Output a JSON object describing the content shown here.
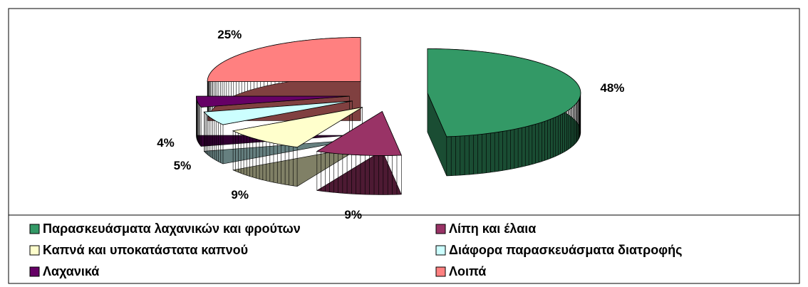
{
  "chart_data": {
    "type": "pie",
    "categories": [
      "Παρασκευάσματα λαχανικών και φρούτων",
      "Λίπη και έλαια",
      "Καπνά και υποκατάστατα καπνού",
      "Διάφορα παρασκευάσματα διατροφής",
      "Λαχανικά",
      "Λοιπά"
    ],
    "values": [
      48,
      9,
      9,
      5,
      4,
      25
    ],
    "value_labels": [
      "48%",
      "9%",
      "9%",
      "5%",
      "4%",
      "25%"
    ],
    "colors": [
      "#339966",
      "#993366",
      "#ffffcc",
      "#ccffff",
      "#660066",
      "#ff8080"
    ],
    "legend": "bottom"
  }
}
